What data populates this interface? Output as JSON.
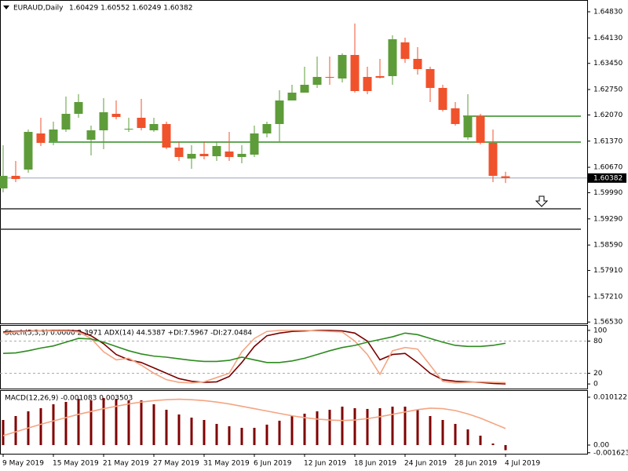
{
  "chart_data": [
    {
      "type": "candlestick",
      "title": "EURAUD,Daily",
      "subtitle": "1.60429 1.60552 1.60249 1.60382",
      "categories": [
        "9 May 2019",
        null,
        null,
        null,
        "15 May 2019",
        null,
        null,
        null,
        "21 May 2019",
        null,
        null,
        null,
        "27 May 2019",
        null,
        null,
        null,
        "31 May 2019",
        null,
        null,
        null,
        "6 Jun 2019",
        null,
        null,
        null,
        "12 Jun 2019",
        null,
        null,
        null,
        "18 Jun 2019",
        null,
        null,
        null,
        "24 Jun 2019",
        null,
        null,
        null,
        "28 Jun 2019",
        null,
        null,
        null,
        "4 Jul 2019"
      ],
      "open": [
        1.60105,
        1.60441,
        1.60609,
        1.61575,
        1.61365,
        1.6168,
        1.621,
        1.61407,
        1.61659,
        1.621,
        1.6168,
        1.61995,
        1.61659,
        1.61827,
        1.61197,
        1.60903,
        1.61029,
        1.60966,
        1.61092,
        1.60945,
        1.61008,
        1.61575,
        1.61827,
        1.62457,
        1.62667,
        1.62877,
        1.63087,
        1.63045,
        1.63675,
        1.63087,
        1.63108,
        1.63108,
        1.64011,
        1.6357,
        1.63297,
        1.62793,
        1.62247,
        1.6147,
        1.62037,
        1.61323,
        1.60429
      ],
      "high": [
        1.6126,
        1.6084,
        1.6168,
        1.61995,
        1.6189,
        1.62562,
        1.62625,
        1.61785,
        1.6252,
        1.62457,
        1.61995,
        1.62499,
        1.61995,
        1.6189,
        1.61365,
        1.6126,
        1.61365,
        1.61365,
        1.61617,
        1.6126,
        1.61785,
        1.6189,
        1.6273,
        1.62877,
        1.6336,
        1.63633,
        1.63633,
        1.63717,
        1.64515,
        1.6336,
        1.6357,
        1.642,
        1.64137,
        1.63885,
        1.6336,
        1.62877,
        1.62415,
        1.62625,
        1.621,
        1.6168,
        1.60552
      ],
      "low": [
        1.6,
        1.60273,
        1.60525,
        1.61239,
        1.6126,
        1.61617,
        1.61995,
        1.60987,
        1.61155,
        1.61953,
        1.61617,
        1.61659,
        1.61617,
        1.61155,
        1.6084,
        1.6063,
        1.60882,
        1.6084,
        1.6084,
        1.60777,
        1.60945,
        1.6147,
        1.61365,
        1.62457,
        1.62667,
        1.62793,
        1.62877,
        1.6294,
        1.62667,
        1.62625,
        1.63045,
        1.62877,
        1.63465,
        1.6315,
        1.62415,
        1.62163,
        1.61785,
        1.61407,
        1.61281,
        1.60273,
        1.60249
      ],
      "close": [
        1.60441,
        1.60357,
        1.61617,
        1.61323,
        1.6168,
        1.621,
        1.62415,
        1.61659,
        1.62142,
        1.62016,
        1.61701,
        1.61722,
        1.61827,
        1.61197,
        1.60945,
        1.61029,
        1.60966,
        1.61239,
        1.60945,
        1.61029,
        1.61575,
        1.61827,
        1.62457,
        1.62667,
        1.62877,
        1.63087,
        1.63066,
        1.63675,
        1.62709,
        1.62709,
        1.63066,
        1.64095,
        1.6357,
        1.63297,
        1.62793,
        1.62205,
        1.61827,
        1.62037,
        1.61323,
        1.60441,
        1.60382
      ],
      "up_color": "#5e9c3a",
      "down_color": "#f0522c",
      "ylim": [
        1.56493,
        1.65145
      ],
      "yticks": [
        {
          "value": 1.6483,
          "label": "1.64830"
        },
        {
          "value": 1.6413,
          "label": "1.64130"
        },
        {
          "value": 1.6345,
          "label": "1.63450"
        },
        {
          "value": 1.6275,
          "label": "1.62750"
        },
        {
          "value": 1.6207,
          "label": "1.62070"
        },
        {
          "value": 1.6137,
          "label": "1.61370"
        },
        {
          "value": 1.6067,
          "label": "1.60670"
        },
        {
          "value": 1.5999,
          "label": "1.59990"
        },
        {
          "value": 1.5929,
          "label": "1.59290"
        },
        {
          "value": 1.5859,
          "label": "1.58590"
        },
        {
          "value": 1.5791,
          "label": "1.57910"
        },
        {
          "value": 1.5721,
          "label": "1.57210"
        },
        {
          "value": 1.5653,
          "label": "1.56530"
        }
      ],
      "last_price": {
        "value": 1.60382,
        "label": "1.60382"
      },
      "levels": [
        {
          "value": 1.62037,
          "color": "#2e8b20",
          "start": 37
        },
        {
          "value": 1.61344,
          "color": "#2e8b20",
          "start": 4
        },
        {
          "value": 1.59559,
          "color": "#333333",
          "start": 0
        },
        {
          "value": 1.59013,
          "color": "#333333",
          "start": 0
        }
      ]
    },
    {
      "type": "line",
      "title": "Stoch(5,3,3) 0.0000 2.3971 ADX(14) 44.5387 +DI:7.5967 -DI:27.0484",
      "ylim": [
        -8.6,
        108.6
      ],
      "yticks": [
        100,
        80,
        20,
        0
      ],
      "levels": [
        80,
        20
      ],
      "series": [
        {
          "color": "#7a0000",
          "values": [
            97,
            98,
            99,
            99,
            100,
            100,
            99,
            90,
            75,
            55,
            45,
            40,
            30,
            20,
            10,
            5,
            3,
            4,
            14,
            40,
            70,
            90,
            95,
            98,
            99,
            100,
            100,
            99,
            95,
            80,
            45,
            55,
            57,
            40,
            20,
            8,
            5,
            4,
            3,
            1,
            0
          ]
        },
        {
          "color": "#f4a582",
          "values": [
            95,
            97,
            98,
            99,
            99,
            99,
            97,
            85,
            60,
            45,
            48,
            35,
            20,
            8,
            3,
            2,
            4,
            12,
            20,
            60,
            85,
            98,
            100,
            100,
            100,
            99,
            98,
            97,
            80,
            55,
            18,
            62,
            68,
            65,
            35,
            5,
            2,
            3,
            4,
            3,
            2.3971
          ]
        },
        {
          "color": "#2e8b20",
          "values": [
            57,
            58,
            62,
            67,
            71,
            78,
            85,
            84,
            78,
            70,
            62,
            56,
            52,
            50,
            47,
            44,
            42,
            42,
            44,
            50,
            45,
            40,
            40,
            43,
            48,
            55,
            62,
            68,
            72,
            78,
            83,
            88,
            95,
            92,
            85,
            78,
            72,
            70,
            70,
            72,
            76
          ]
        }
      ]
    },
    {
      "type": "bar",
      "title": "MACD(12,26,9) -0.001083 0.003503",
      "ylim": [
        -0.00183,
        0.01145
      ],
      "yticks": [
        0.010122,
        {
          "value": 0,
          "label": "0.00"
        },
        -0.001623
      ],
      "series": [
        {
          "type": "bar",
          "color": "#800000",
          "values": [
            0.00531,
            0.00614,
            0.00714,
            0.0078,
            0.00863,
            0.00913,
            0.00979,
            0.00946,
            0.00996,
            0.00979,
            0.00946,
            0.00946,
            0.00863,
            0.00747,
            0.00647,
            0.00581,
            0.00531,
            0.00448,
            0.00398,
            0.00365,
            0.00365,
            0.00432,
            0.00515,
            0.00614,
            0.00664,
            0.00714,
            0.00747,
            0.00813,
            0.0078,
            0.00764,
            0.0078,
            0.00813,
            0.00813,
            0.00747,
            0.00614,
            0.00531,
            0.00448,
            0.00332,
            0.00199,
            0.00033,
            -0.001083
          ]
        },
        {
          "type": "line",
          "color": "#f4a582",
          "values": [
            0.002,
            0.0028,
            0.0036,
            0.0044,
            0.0051,
            0.0058,
            0.0065,
            0.0071,
            0.0077,
            0.0082,
            0.0087,
            0.0091,
            0.0094,
            0.0096,
            0.0097,
            0.0096,
            0.0094,
            0.0091,
            0.0087,
            0.0082,
            0.0077,
            0.0072,
            0.0067,
            0.0062,
            0.0058,
            0.0055,
            0.0053,
            0.0052,
            0.0053,
            0.0056,
            0.006,
            0.0065,
            0.007,
            0.0075,
            0.0078,
            0.0077,
            0.0073,
            0.0066,
            0.0057,
            0.0046,
            0.003503
          ]
        }
      ]
    }
  ]
}
